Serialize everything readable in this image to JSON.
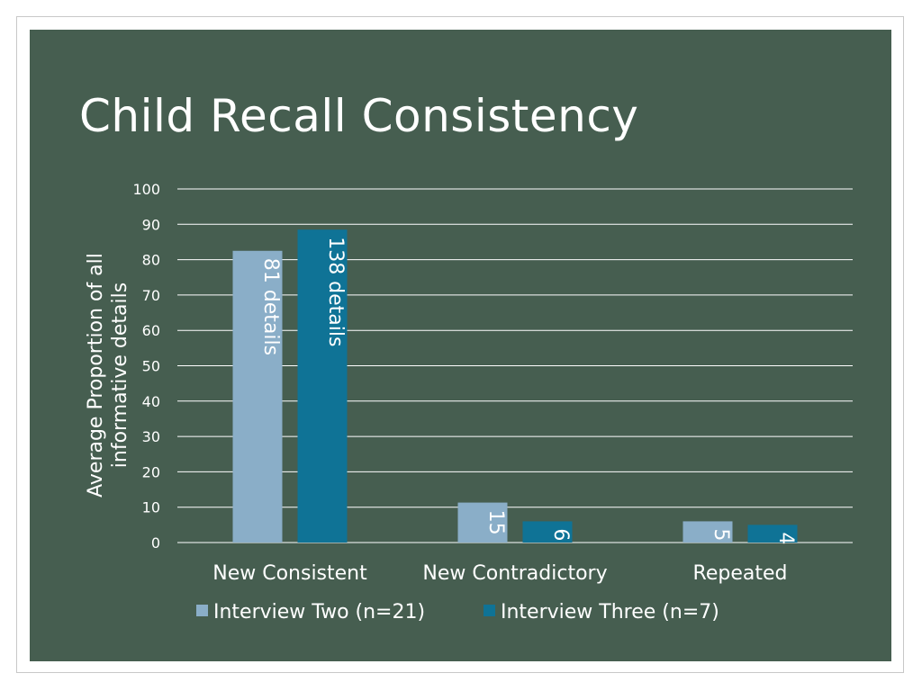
{
  "slide": {
    "title": "Child Recall Consistency",
    "background_color": "#465e50"
  },
  "chart_data": {
    "type": "bar",
    "title": "",
    "xlabel": "",
    "ylabel": "Average Proportion of all informative details",
    "ylabel_lines": [
      "Average Proportion of all",
      "informative details"
    ],
    "ylim": [
      0,
      100
    ],
    "y_ticks": [
      0,
      10,
      20,
      30,
      40,
      50,
      60,
      70,
      80,
      90,
      100
    ],
    "grid": true,
    "legend_position": "bottom",
    "categories": [
      "New Consistent",
      "New Contradictory",
      "Repeated"
    ],
    "series": [
      {
        "name": "Interview Two (n=21)",
        "color": "#8aaec8",
        "values": [
          82.5,
          11.3,
          6
        ],
        "labels": [
          "81 details",
          "15",
          "5"
        ]
      },
      {
        "name": "Interview Three (n=7)",
        "color": "#0f7396",
        "values": [
          88.5,
          6,
          5
        ],
        "labels": [
          "138 details",
          "6",
          "4"
        ]
      }
    ]
  }
}
